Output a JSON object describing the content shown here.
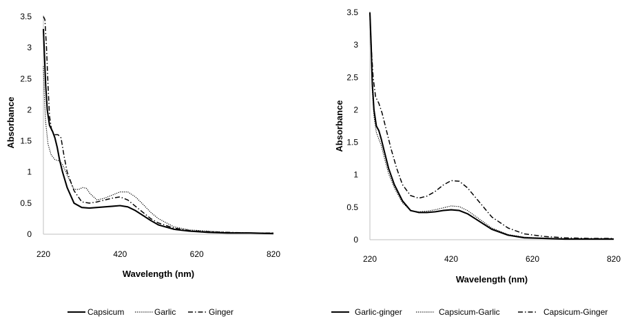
{
  "chart_data": [
    {
      "type": "line",
      "title": "",
      "xlabel": "Wavelength (nm)",
      "ylabel": "Absorbance",
      "xlim": [
        220,
        820
      ],
      "ylim": [
        0,
        3.5
      ],
      "xticks": [
        220,
        420,
        620,
        820
      ],
      "yticks": [
        0,
        0.5,
        1,
        1.5,
        2,
        2.5,
        3,
        3.5
      ],
      "grid": false,
      "legend_position": "bottom",
      "series": [
        {
          "name": "Capsicum",
          "style": "solid",
          "x": [
            220,
            222,
            226,
            230,
            236,
            244,
            250,
            256,
            262,
            270,
            282,
            300,
            320,
            340,
            360,
            380,
            400,
            420,
            440,
            460,
            480,
            500,
            520,
            560,
            600,
            650,
            700,
            760,
            820
          ],
          "y": [
            3.3,
            3.0,
            2.4,
            2.0,
            1.75,
            1.65,
            1.55,
            1.4,
            1.2,
            1.0,
            0.75,
            0.5,
            0.43,
            0.42,
            0.43,
            0.44,
            0.45,
            0.46,
            0.44,
            0.38,
            0.3,
            0.22,
            0.15,
            0.08,
            0.05,
            0.03,
            0.02,
            0.02,
            0.01
          ]
        },
        {
          "name": "Garlic",
          "style": "dotted",
          "x": [
            220,
            222,
            226,
            232,
            240,
            250,
            260,
            270,
            282,
            300,
            312,
            322,
            332,
            342,
            360,
            380,
            400,
            420,
            440,
            460,
            480,
            500,
            520,
            560,
            600,
            650,
            700,
            760,
            820
          ],
          "y": [
            2.7,
            2.3,
            1.8,
            1.45,
            1.28,
            1.2,
            1.18,
            1.12,
            0.95,
            0.72,
            0.72,
            0.75,
            0.74,
            0.65,
            0.55,
            0.58,
            0.63,
            0.68,
            0.68,
            0.6,
            0.48,
            0.35,
            0.25,
            0.12,
            0.07,
            0.05,
            0.03,
            0.02,
            0.02
          ]
        },
        {
          "name": "Ginger",
          "style": "dashdot",
          "x": [
            220,
            224,
            228,
            232,
            236,
            242,
            250,
            258,
            266,
            274,
            282,
            300,
            320,
            340,
            360,
            380,
            400,
            420,
            440,
            460,
            480,
            500,
            520,
            560,
            600,
            650,
            700,
            760,
            820
          ],
          "y": [
            3.5,
            3.45,
            3.0,
            2.4,
            1.9,
            1.65,
            1.6,
            1.6,
            1.55,
            1.25,
            1.0,
            0.7,
            0.52,
            0.5,
            0.52,
            0.55,
            0.58,
            0.6,
            0.55,
            0.45,
            0.35,
            0.25,
            0.18,
            0.1,
            0.06,
            0.04,
            0.03,
            0.02,
            0.02
          ]
        }
      ]
    },
    {
      "type": "line",
      "title": "",
      "xlabel": "Wavelength (nm)",
      "ylabel": "Absorbance",
      "xlim": [
        220,
        820
      ],
      "ylim": [
        0,
        3.5
      ],
      "xticks": [
        220,
        420,
        620,
        820
      ],
      "yticks": [
        0,
        0.5,
        1,
        1.5,
        2,
        2.5,
        3,
        3.5
      ],
      "grid": false,
      "legend_position": "bottom",
      "series": [
        {
          "name": "Garlic-ginger",
          "style": "solid",
          "x": [
            220,
            223,
            226,
            230,
            236,
            242,
            248,
            256,
            266,
            280,
            300,
            320,
            340,
            360,
            380,
            400,
            420,
            440,
            460,
            480,
            500,
            520,
            560,
            600,
            650,
            700,
            760,
            820
          ],
          "y": [
            3.5,
            3.0,
            2.4,
            2.0,
            1.75,
            1.68,
            1.55,
            1.35,
            1.1,
            0.85,
            0.6,
            0.45,
            0.42,
            0.42,
            0.43,
            0.45,
            0.46,
            0.45,
            0.4,
            0.32,
            0.24,
            0.16,
            0.07,
            0.03,
            0.02,
            0.01,
            0.01,
            0.01
          ]
        },
        {
          "name": "Capsicum-Garlic",
          "style": "dotted",
          "x": [
            220,
            223,
            226,
            230,
            236,
            242,
            248,
            256,
            266,
            280,
            300,
            320,
            340,
            360,
            380,
            400,
            420,
            440,
            460,
            480,
            500,
            520,
            560,
            600,
            650,
            700,
            760,
            820
          ],
          "y": [
            3.4,
            2.9,
            2.3,
            1.9,
            1.65,
            1.55,
            1.45,
            1.25,
            1.02,
            0.8,
            0.57,
            0.45,
            0.43,
            0.44,
            0.46,
            0.49,
            0.52,
            0.51,
            0.45,
            0.36,
            0.27,
            0.18,
            0.08,
            0.04,
            0.02,
            0.01,
            0.01,
            0.01
          ]
        },
        {
          "name": "Capsicum-Ginger",
          "style": "dashdot",
          "x": [
            220,
            223,
            228,
            234,
            242,
            250,
            260,
            272,
            286,
            300,
            320,
            340,
            360,
            380,
            400,
            420,
            440,
            460,
            480,
            500,
            520,
            560,
            600,
            650,
            700,
            760,
            820
          ],
          "y": [
            3.5,
            3.0,
            2.5,
            2.2,
            2.1,
            1.95,
            1.7,
            1.4,
            1.1,
            0.85,
            0.68,
            0.64,
            0.67,
            0.74,
            0.84,
            0.91,
            0.9,
            0.8,
            0.65,
            0.5,
            0.35,
            0.18,
            0.09,
            0.05,
            0.03,
            0.02,
            0.02
          ]
        }
      ]
    }
  ]
}
